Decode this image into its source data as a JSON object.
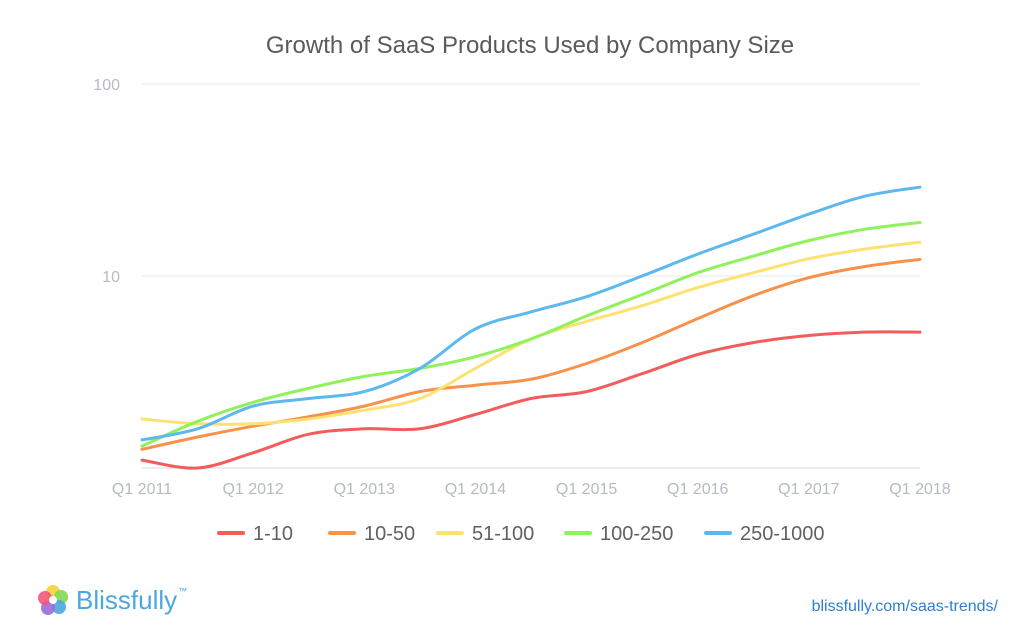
{
  "chart_data": {
    "type": "line",
    "title": "Growth of SaaS Products Used by Company Size",
    "xlabel": "",
    "ylabel": "",
    "y_scale": "log",
    "ylim": [
      1,
      100
    ],
    "y_ticks": [
      "100",
      "10"
    ],
    "categories": [
      "Q1 2011",
      "Q1 2012",
      "Q1 2013",
      "Q1 2014",
      "Q1 2015",
      "Q1 2016",
      "Q1 2017",
      "Q1 2018"
    ],
    "x": [
      2011,
      2011.5,
      2012,
      2012.5,
      2013,
      2013.5,
      2014,
      2014.5,
      2015,
      2015.5,
      2016,
      2016.5,
      2017,
      2017.5,
      2018
    ],
    "grid": true,
    "legend": "bottom",
    "series": [
      {
        "name": "1-10",
        "color": "#f25c5c",
        "values": [
          1.1,
          1.0,
          1.2,
          1.5,
          1.6,
          1.6,
          1.9,
          2.3,
          2.5,
          3.1,
          3.9,
          4.5,
          4.9,
          5.1,
          5.1
        ]
      },
      {
        "name": "10-50",
        "color": "#f8924b",
        "values": [
          1.25,
          1.45,
          1.65,
          1.85,
          2.1,
          2.5,
          2.7,
          2.9,
          3.5,
          4.5,
          6.0,
          7.9,
          9.8,
          11.2,
          12.2
        ]
      },
      {
        "name": "51-100",
        "color": "#fde272",
        "values": [
          1.8,
          1.7,
          1.7,
          1.8,
          2.0,
          2.3,
          3.3,
          4.7,
          5.8,
          7.0,
          8.7,
          10.4,
          12.3,
          13.8,
          15.0
        ]
      },
      {
        "name": "100-250",
        "color": "#8ff25b",
        "values": [
          1.3,
          1.75,
          2.2,
          2.6,
          3.0,
          3.3,
          3.8,
          4.7,
          6.2,
          8.0,
          10.4,
          12.7,
          15.3,
          17.5,
          19.0
        ]
      },
      {
        "name": "250-1000",
        "color": "#5cb8ee",
        "values": [
          1.4,
          1.6,
          2.1,
          2.3,
          2.5,
          3.3,
          5.3,
          6.5,
          7.8,
          10.0,
          13.0,
          16.5,
          21.0,
          26.0,
          29.0
        ]
      }
    ]
  },
  "brand": {
    "name": "Blissfully",
    "tm": "™"
  },
  "source": "blissfully.com/saas-trends/"
}
